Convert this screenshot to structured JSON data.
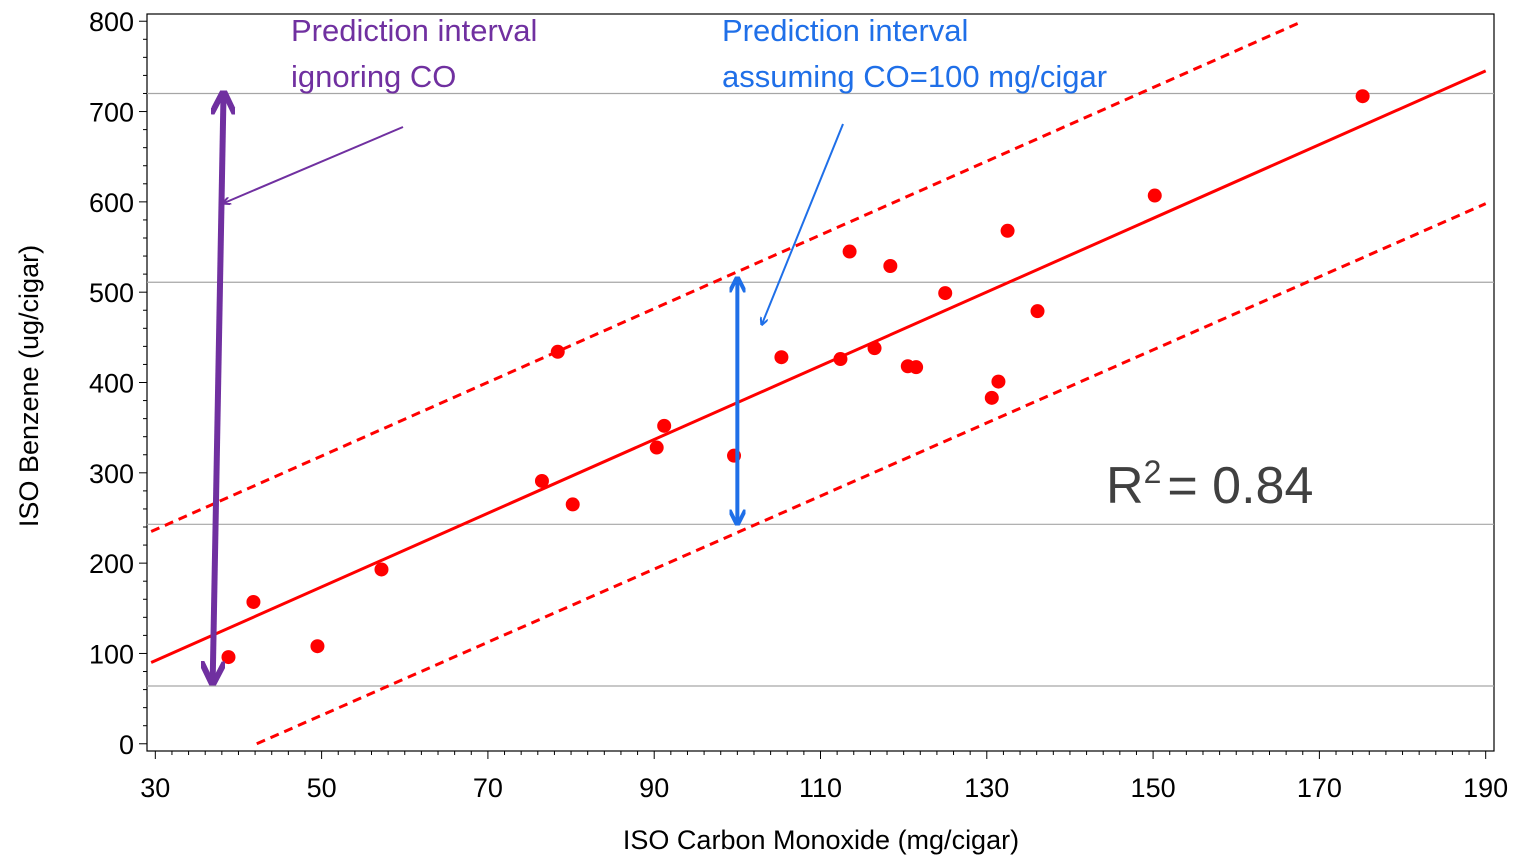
{
  "colors": {
    "fit": "#ff0000",
    "points": "#ff0000",
    "purple": "#7030a0",
    "blue": "#1f6fe8",
    "ref_lines": "#a6a6a6",
    "r2_text": "#404040"
  },
  "annotations": {
    "purple_line1": "Prediction interval",
    "purple_line2": "ignoring CO",
    "blue_line1": "Prediction interval",
    "blue_line2": "assuming CO=100 mg/cigar",
    "r2_prefix": "R",
    "r2_sup": "2",
    "r2_value": "= 0.84"
  },
  "chart_data": {
    "type": "scatter",
    "xlabel": "ISO Carbon Monoxide (mg/cigar)",
    "ylabel": "ISO Benzene (ug/cigar)",
    "xlim": [
      29,
      191
    ],
    "ylim": [
      -8,
      808
    ],
    "x_ticks": [
      30,
      50,
      70,
      90,
      110,
      130,
      150,
      170,
      190
    ],
    "y_ticks": [
      0,
      100,
      200,
      300,
      400,
      500,
      600,
      700,
      800
    ],
    "grid": false,
    "points": [
      {
        "x": 38.8,
        "y": 96
      },
      {
        "x": 41.8,
        "y": 157
      },
      {
        "x": 49.5,
        "y": 108
      },
      {
        "x": 57.2,
        "y": 193
      },
      {
        "x": 76.5,
        "y": 291
      },
      {
        "x": 78.4,
        "y": 434
      },
      {
        "x": 80.2,
        "y": 265
      },
      {
        "x": 90.3,
        "y": 328
      },
      {
        "x": 91.2,
        "y": 352
      },
      {
        "x": 99.6,
        "y": 319
      },
      {
        "x": 105.3,
        "y": 428
      },
      {
        "x": 112.4,
        "y": 426
      },
      {
        "x": 113.5,
        "y": 545
      },
      {
        "x": 116.5,
        "y": 438
      },
      {
        "x": 118.4,
        "y": 529
      },
      {
        "x": 120.5,
        "y": 418
      },
      {
        "x": 121.5,
        "y": 417
      },
      {
        "x": 125.0,
        "y": 499
      },
      {
        "x": 130.6,
        "y": 383
      },
      {
        "x": 131.4,
        "y": 401
      },
      {
        "x": 132.5,
        "y": 568
      },
      {
        "x": 136.1,
        "y": 479
      },
      {
        "x": 150.2,
        "y": 607
      },
      {
        "x": 175.2,
        "y": 717
      }
    ],
    "fit_line": {
      "x": [
        29.5,
        190
      ],
      "y": [
        90,
        745
      ]
    },
    "upper_prediction": {
      "x": [
        29.5,
        168
      ],
      "y": [
        235,
        800
      ]
    },
    "lower_prediction": {
      "x": [
        42.2,
        190
      ],
      "y": [
        0,
        598
      ]
    },
    "reference_lines_y": [
      720,
      511,
      243,
      64
    ],
    "interval_ignoring_co": {
      "x": [
        38.2,
        36.9
      ],
      "y": [
        718,
        70
      ]
    },
    "interval_co_100": {
      "x": 100,
      "y": [
        514,
        245
      ]
    }
  }
}
